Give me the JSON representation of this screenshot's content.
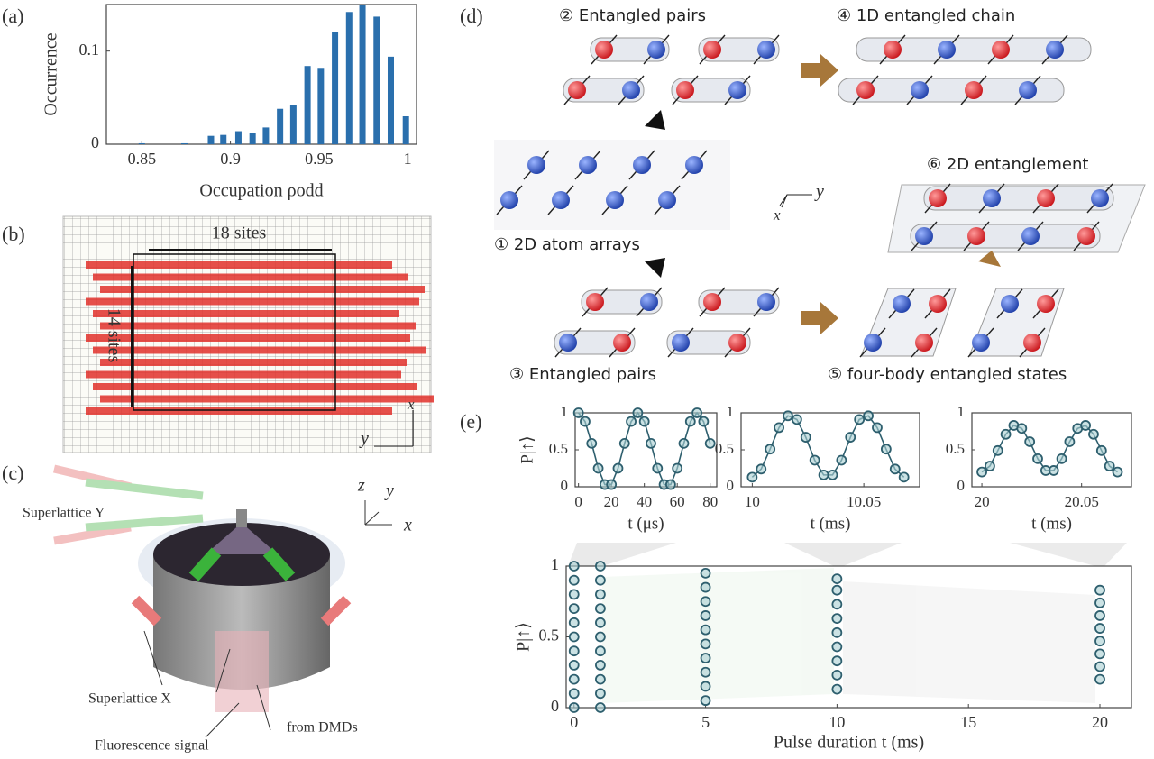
{
  "panel_labels": [
    "(a)",
    "(b)",
    "(c)",
    "(d)",
    "(e)"
  ],
  "chart_data": [
    {
      "type": "bar",
      "xlabel": "Occupation ρodd",
      "ylabel": "Occurrence",
      "color": "#2a6fad",
      "x": [
        0.85,
        0.874,
        0.889,
        0.896,
        0.9045,
        0.9125,
        0.92,
        0.928,
        0.9355,
        0.9435,
        0.951,
        0.959,
        0.967,
        0.9745,
        0.9825,
        0.9905,
        0.999
      ],
      "values": [
        0.001,
        0.001,
        0.009,
        0.01,
        0.014,
        0.012,
        0.018,
        0.038,
        0.042,
        0.084,
        0.082,
        0.12,
        0.142,
        0.15,
        0.137,
        0.094,
        0.03
      ],
      "xlim": [
        0.83,
        1.005
      ],
      "ylim": [
        0,
        0.15
      ],
      "xticks": [
        0.85,
        0.9,
        0.95,
        1
      ],
      "yticks": [
        0,
        0.1
      ]
    },
    {
      "type": "line",
      "xlabel": "t (μs)",
      "ylabel": "P|↑⟩",
      "color": "#2e5f6e",
      "x": [
        0,
        4,
        8,
        12,
        16,
        20,
        24,
        28,
        32,
        36,
        40,
        44,
        48,
        52,
        56,
        60,
        64,
        68,
        72,
        76,
        80
      ],
      "values": [
        1,
        0.883,
        0.587,
        0.25,
        0.03,
        0.03,
        0.25,
        0.587,
        0.883,
        1,
        0.883,
        0.587,
        0.25,
        0.03,
        0.03,
        0.25,
        0.587,
        0.883,
        1,
        0.883,
        0.587
      ],
      "xlim": [
        -2,
        84
      ],
      "ylim": [
        0,
        1
      ],
      "xticks": [
        0,
        20,
        40,
        60,
        80
      ],
      "yticks": [
        0,
        0.5,
        1
      ]
    },
    {
      "type": "line",
      "xlabel": "t (ms)",
      "color": "#2e5f6e",
      "x": [
        10,
        10.004,
        10.008,
        10.012,
        10.016,
        10.02,
        10.024,
        10.028,
        10.032,
        10.036,
        10.04,
        10.044,
        10.048,
        10.052,
        10.056,
        10.06,
        10.064,
        10.068
      ],
      "values": [
        0.13,
        0.24,
        0.51,
        0.8,
        0.96,
        0.91,
        0.67,
        0.36,
        0.16,
        0.16,
        0.36,
        0.67,
        0.91,
        0.96,
        0.8,
        0.51,
        0.24,
        0.13
      ],
      "xlim": [
        9.995,
        10.075
      ],
      "ylim": [
        0,
        1
      ],
      "xticks": [
        10,
        10.05
      ],
      "yticks": [
        0,
        0.5,
        1
      ]
    },
    {
      "type": "line",
      "xlabel": "t (ms)",
      "color": "#2e5f6e",
      "x": [
        20,
        20.004,
        20.008,
        20.012,
        20.016,
        20.02,
        20.024,
        20.028,
        20.032,
        20.036,
        20.04,
        20.044,
        20.048,
        20.052,
        20.056,
        20.06,
        20.064,
        20.068
      ],
      "values": [
        0.2,
        0.28,
        0.49,
        0.71,
        0.83,
        0.79,
        0.61,
        0.38,
        0.22,
        0.22,
        0.38,
        0.61,
        0.79,
        0.83,
        0.71,
        0.49,
        0.28,
        0.2
      ],
      "xlim": [
        19.995,
        20.075
      ],
      "ylim": [
        0,
        1
      ],
      "xticks": [
        20,
        20.05
      ],
      "yticks": [
        0,
        0.5,
        1
      ]
    },
    {
      "type": "scatter",
      "xlabel": "Pulse duration t (ms)",
      "ylabel": "P|↑⟩",
      "color": "#2e5f6e",
      "x": [
        0,
        0,
        0,
        0,
        0,
        0,
        0,
        0,
        0,
        0,
        0,
        1,
        1,
        1,
        1,
        1,
        1,
        1,
        1,
        1,
        1,
        1,
        5,
        5,
        5,
        5,
        5,
        5,
        5,
        5,
        5,
        5,
        10,
        10,
        10,
        10,
        10,
        10,
        10,
        10,
        10,
        20,
        20,
        20,
        20,
        20,
        20,
        20,
        20
      ],
      "values": [
        0,
        0.1,
        0.2,
        0.3,
        0.4,
        0.5,
        0.6,
        0.7,
        0.8,
        0.9,
        1,
        0,
        0.1,
        0.2,
        0.3,
        0.4,
        0.5,
        0.6,
        0.7,
        0.8,
        0.9,
        1,
        0.05,
        0.15,
        0.25,
        0.35,
        0.45,
        0.55,
        0.65,
        0.75,
        0.85,
        0.95,
        0.13,
        0.23,
        0.33,
        0.43,
        0.53,
        0.63,
        0.73,
        0.83,
        0.91,
        0.2,
        0.29,
        0.38,
        0.47,
        0.56,
        0.65,
        0.74,
        0.83
      ],
      "xlim": [
        -0.3,
        21.2
      ],
      "ylim": [
        0,
        1
      ],
      "xticks": [
        0,
        5,
        10,
        15,
        20
      ],
      "yticks": [
        0,
        0.5,
        1
      ]
    }
  ],
  "panel_b": {
    "width_label": "18 sites",
    "height_label": "14 sites",
    "axis_x": "x",
    "axis_y": "y"
  },
  "panel_c": {
    "labels": [
      "Superlattice Y",
      "Superlattice X",
      "Fluorescence signal",
      "from DMDs"
    ],
    "axes": [
      "z",
      "y",
      "x"
    ]
  },
  "panel_d": {
    "steps": [
      "① 2D atom arrays",
      "② Entangled pairs",
      "③ Entangled pairs",
      "④ 1D entangled chain",
      "⑤ four-body entangled states",
      "⑥ 2D entanglement"
    ],
    "axes": [
      "x",
      "y"
    ]
  }
}
